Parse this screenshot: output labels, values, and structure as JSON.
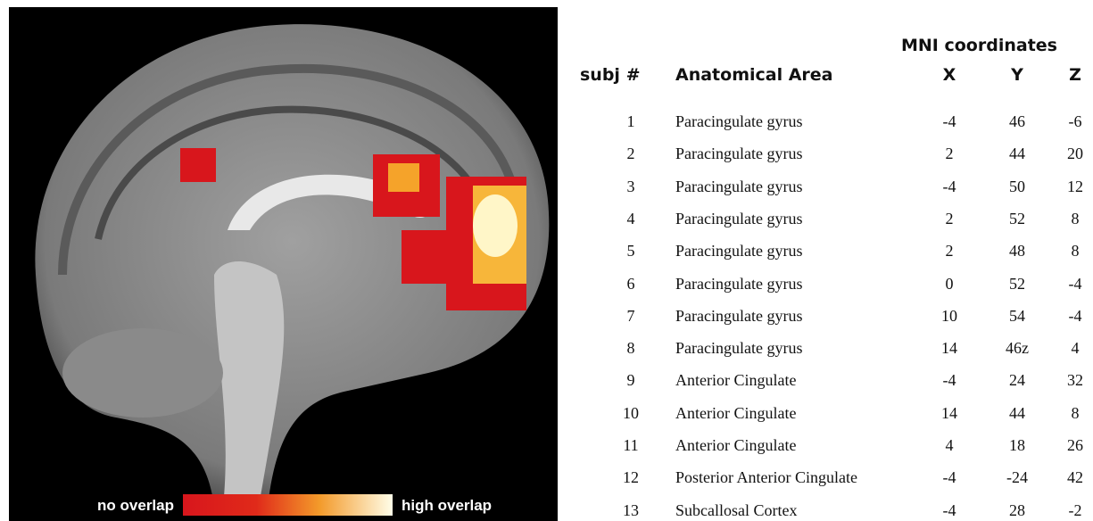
{
  "figure": {
    "colorbar": {
      "low_label": "no overlap",
      "high_label": "high overlap"
    }
  },
  "table": {
    "group_header": "MNI coordinates",
    "columns": [
      "subj #",
      "Anatomical Area",
      "X",
      "Y",
      "Z"
    ],
    "rows": [
      [
        1,
        "Paracingulate gyrus",
        -4,
        46,
        -6
      ],
      [
        2,
        "Paracingulate gyrus",
        2,
        44,
        20
      ],
      [
        3,
        "Paracingulate gyrus",
        -4,
        50,
        12
      ],
      [
        4,
        "Paracingulate gyrus",
        2,
        52,
        8
      ],
      [
        5,
        "Paracingulate gyrus",
        2,
        48,
        8
      ],
      [
        6,
        "Paracingulate gyrus",
        0,
        52,
        -4
      ],
      [
        7,
        "Paracingulate gyrus",
        10,
        54,
        -4
      ],
      [
        8,
        "Paracingulate gyrus",
        14,
        "46z",
        4
      ],
      [
        9,
        "Anterior Cingulate",
        -4,
        24,
        32
      ],
      [
        10,
        "Anterior Cingulate",
        14,
        44,
        8
      ],
      [
        11,
        "Anterior Cingulate",
        4,
        18,
        26
      ],
      [
        12,
        "Posterior Anterior Cingulate",
        -4,
        -24,
        42
      ],
      [
        13,
        "Subcallosal Cortex",
        -4,
        28,
        -2
      ]
    ]
  }
}
